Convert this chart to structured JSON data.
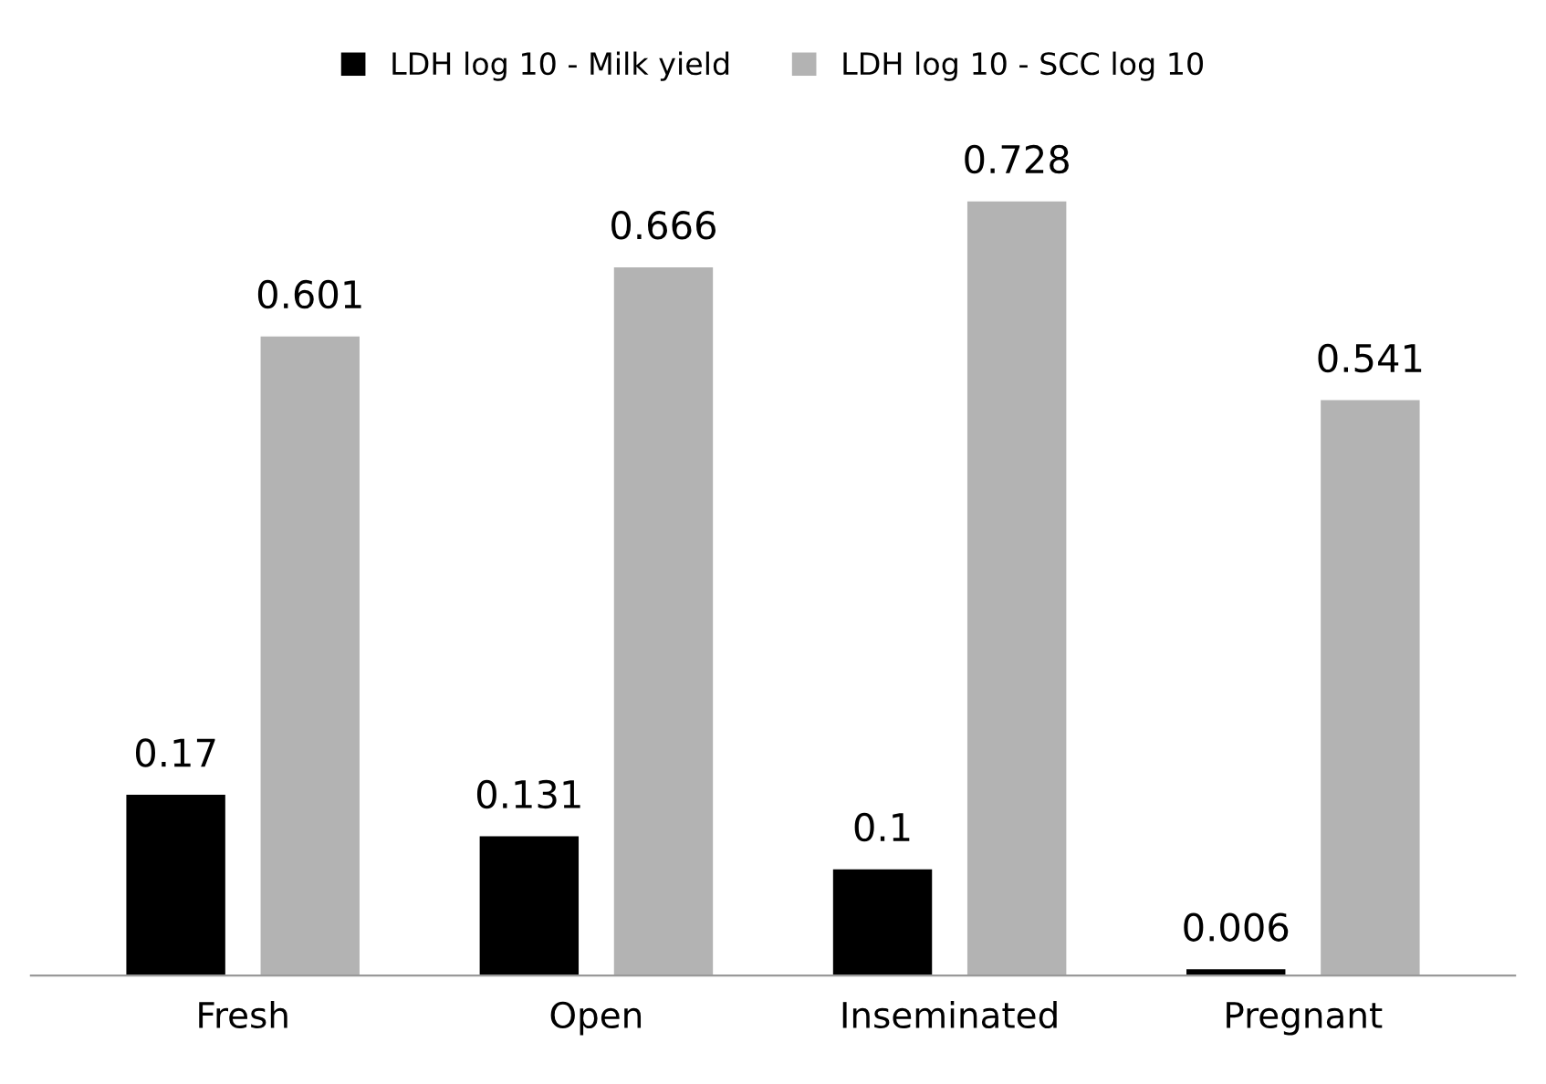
{
  "chart_data": {
    "type": "bar",
    "categories": [
      "Fresh",
      "Open",
      "Inseminated",
      "Pregnant"
    ],
    "series": [
      {
        "name": "LDH log 10 - Milk yield",
        "color": "#000000",
        "values": [
          0.17,
          0.131,
          0.1,
          0.006
        ]
      },
      {
        "name": "LDH log 10 - SCC log 10",
        "color": "#b3b3b3",
        "values": [
          0.601,
          0.666,
          0.728,
          0.541
        ]
      }
    ],
    "data_labels": true,
    "legend": "top",
    "grid": false,
    "tick_labels": "x"
  }
}
